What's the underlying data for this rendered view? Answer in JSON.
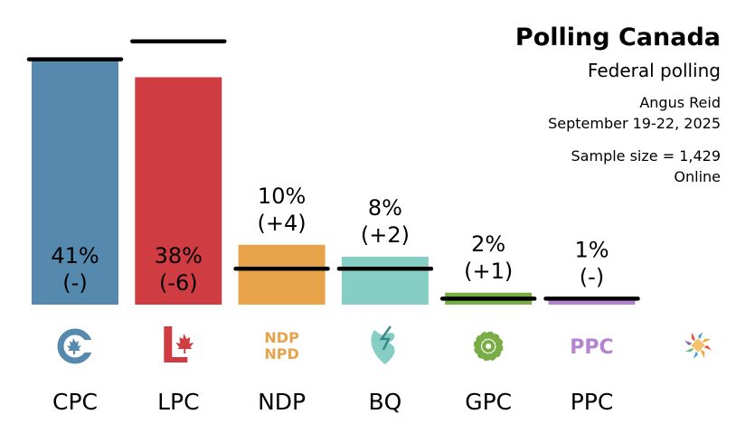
{
  "header": {
    "title": "Polling Canada",
    "subtitle": "Federal polling",
    "pollster": "Angus Reid",
    "dates": "September 19-22, 2025",
    "sample": "Sample size = 1,429",
    "mode": "Online"
  },
  "chart_data": {
    "type": "bar",
    "categories": [
      "CPC",
      "LPC",
      "NDP",
      "BQ",
      "GPC",
      "PPC"
    ],
    "values": [
      41,
      38,
      10,
      8,
      2,
      1
    ],
    "previous": [
      41,
      44,
      6,
      6,
      1,
      1
    ],
    "value_labels": [
      "41%",
      "38%",
      "10%",
      "8%",
      "2%",
      "1%"
    ],
    "change_labels": [
      "(-)",
      "(-6)",
      "(+4)",
      "(+2)",
      "(+1)",
      "(-)"
    ],
    "colors": [
      "#5589ad",
      "#cf3c41",
      "#e8a24a",
      "#86cdc4",
      "#79ad45",
      "#b484d1"
    ],
    "logo_text": {
      "NDP": [
        "NDP",
        "NPD"
      ],
      "PPC": [
        "PPC"
      ]
    },
    "ylim": [
      0,
      45
    ],
    "grid": false,
    "legend": "none"
  }
}
